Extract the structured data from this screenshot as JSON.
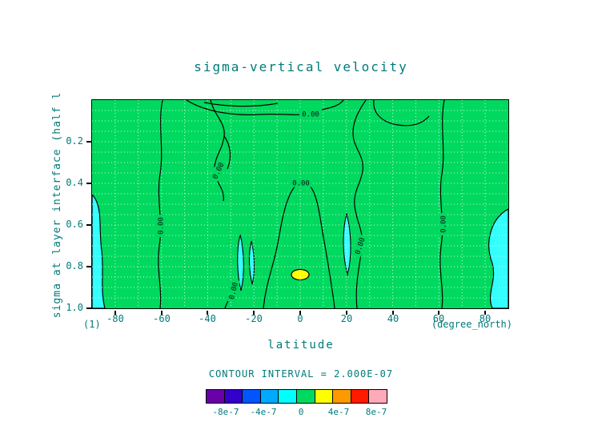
{
  "title": "sigma-vertical velocity",
  "contour_label": "0.00",
  "axes": {
    "ylabel": "sigma at layer interface (half l",
    "xlabel": "latitude",
    "x_unit": "(degree_north)",
    "y_unit": "(1)",
    "x_ticks": [
      "-80",
      "-60",
      "-40",
      "-20",
      "0",
      "20",
      "40",
      "60",
      "80"
    ],
    "y_ticks": [
      "0.2",
      "0.4",
      "0.6",
      "0.8",
      "1.0"
    ]
  },
  "footer": {
    "contour_interval_text": "CONTOUR INTERVAL = 2.000E-07"
  },
  "colorbar": {
    "colors": [
      "#6a00a8",
      "#3300cc",
      "#0055ff",
      "#00aaff",
      "#00ffff",
      "#00d95f",
      "#ffff00",
      "#ff9900",
      "#ff1a00",
      "#ffaabb"
    ],
    "labels": [
      "-8e-7",
      "-4e-7",
      "0",
      "4e-7",
      "8e-7"
    ]
  },
  "plot": {
    "fill_green": "#00d95f",
    "fill_cyan": "#33ffff",
    "fill_yellow": "#ffff00",
    "contour_color": "#000000",
    "grid_color": "rgba(255,255,255,0.8)",
    "text_color": "#007a7a"
  },
  "chart_data": {
    "type": "heatmap",
    "subtype": "filled contour plot (latitude-sigma cross section)",
    "title": "sigma-vertical velocity",
    "xlabel": "latitude",
    "x_units": "degree_north",
    "ylabel": "sigma at layer interface (half l",
    "y_units": "1",
    "xlim": [
      -90,
      90
    ],
    "ylim": [
      1.0,
      0.0
    ],
    "x_ticks": [
      -80,
      -60,
      -40,
      -20,
      0,
      20,
      40,
      60,
      80
    ],
    "y_ticks": [
      0.2,
      0.4,
      0.6,
      0.8,
      1.0
    ],
    "contour_interval": 2e-07,
    "contour_levels": [
      -8e-07,
      -6e-07,
      -4e-07,
      -2e-07,
      0,
      2e-07,
      4e-07,
      6e-07,
      8e-07
    ],
    "labeled_contour_value": 0,
    "colorbar_tick_labels": [
      "-8e-7",
      "-4e-7",
      "0",
      "4e-7",
      "8e-7"
    ],
    "legend_position": "bottom",
    "grid": {
      "visible": true,
      "style": "dotted",
      "x_spacing_deg": 10,
      "y_spacing": 0.05
    },
    "value_regions": [
      {
        "range": [
          0,
          2e-07
        ],
        "color_hex": "#00d95f",
        "description": "dominant background value band over most of the section"
      },
      {
        "range": [
          -2e-07,
          0
        ],
        "color_hex": "#33ffff",
        "description": "near left edge (lat < -85, sigma 0.45-1.0); near right edge (lat > 78, sigma 0.5-1.0); thin slivers near lat -26 and -21 (sigma ~0.63-0.92) and near lat ~20 (sigma ~0.55-0.85)"
      },
      {
        "range": [
          2e-07,
          4e-07
        ],
        "color_hex": "#ffff00",
        "description": "small closed maximum near lat 0, sigma ~0.85"
      }
    ],
    "zero_contour_label_positions": [
      {
        "lat": -60.6,
        "sigma": 0.6
      },
      {
        "lat": -35.7,
        "sigma": 0.34
      },
      {
        "lat": 4.5,
        "sigma": 0.07
      },
      {
        "lat": 0.3,
        "sigma": 0.4
      },
      {
        "lat": -29.1,
        "sigma": 0.92
      },
      {
        "lat": 25.6,
        "sigma": 0.7
      },
      {
        "lat": 61.6,
        "sigma": 0.6
      }
    ]
  }
}
